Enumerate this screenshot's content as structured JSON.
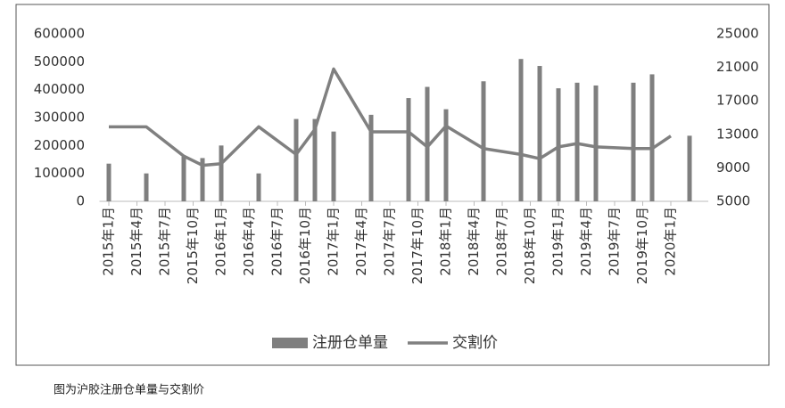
{
  "chart_data": {
    "type": "bar-line",
    "x": [
      0,
      4,
      8,
      10,
      12,
      16,
      20,
      22,
      24,
      28,
      32,
      34,
      36,
      40,
      44,
      46,
      48,
      50,
      52,
      56,
      58,
      60,
      62
    ],
    "xlim": [
      -1,
      64
    ],
    "xticks": [
      {
        "value": 0,
        "label": "2015年1月"
      },
      {
        "value": 3,
        "label": "2015年4月"
      },
      {
        "value": 6,
        "label": "2015年7月"
      },
      {
        "value": 9,
        "label": "2015年10月"
      },
      {
        "value": 12,
        "label": "2016年1月"
      },
      {
        "value": 15,
        "label": "2016年4月"
      },
      {
        "value": 18,
        "label": "2016年7月"
      },
      {
        "value": 21,
        "label": "2016年10月"
      },
      {
        "value": 24,
        "label": "2017年1月"
      },
      {
        "value": 27,
        "label": "2017年4月"
      },
      {
        "value": 30,
        "label": "2017年7月"
      },
      {
        "value": 33,
        "label": "2017年10月"
      },
      {
        "value": 36,
        "label": "2018年1月"
      },
      {
        "value": 39,
        "label": "2018年4月"
      },
      {
        "value": 42,
        "label": "2018年7月"
      },
      {
        "value": 45,
        "label": "2018年10月"
      },
      {
        "value": 48,
        "label": "2019年1月"
      },
      {
        "value": 51,
        "label": "2019年4月"
      },
      {
        "value": 54,
        "label": "2019年7月"
      },
      {
        "value": 57,
        "label": "2019年10月"
      },
      {
        "value": 60,
        "label": "2020年1月"
      }
    ],
    "series": [
      {
        "name": "注册仓单量",
        "type": "bar",
        "color": "#7f7f7f",
        "values": [
          135000,
          100000,
          160000,
          155000,
          200000,
          100000,
          295000,
          295000,
          250000,
          310000,
          370000,
          410000,
          330000,
          430000,
          510000,
          485000,
          405000,
          425000,
          415000,
          425000,
          455000,
          null,
          235000
        ]
      },
      {
        "name": "交割价",
        "type": "line",
        "axis": "y2",
        "color": "#808080",
        "values": [
          13900,
          13900,
          10400,
          9300,
          9500,
          13900,
          10600,
          13600,
          20800,
          13300,
          13300,
          11500,
          14000,
          11300,
          10600,
          10100,
          11500,
          11900,
          11500,
          11300,
          11300,
          12800,
          null
        ]
      }
    ],
    "ylim": [
      0,
      600000
    ],
    "yticks": [
      0,
      100000,
      200000,
      300000,
      400000,
      500000,
      600000
    ],
    "y2lim": [
      5000,
      25000
    ],
    "y2ticks": [
      5000,
      9000,
      13000,
      17000,
      21000,
      25000
    ],
    "grid": false,
    "legend": "bottom"
  },
  "caption": "图为沪胶注册仓单量与交割价"
}
